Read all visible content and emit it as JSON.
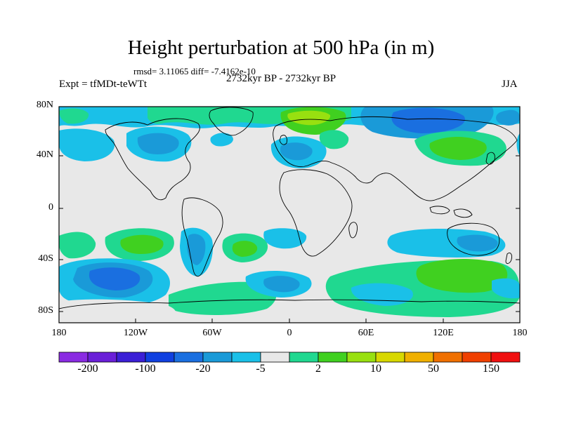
{
  "title": "Height perturbation at 500 hPa (in m)",
  "stats": "rmsd= 3.11065 diff= -7.4162e-10",
  "expt": "Expt = tfMDt-teWTt",
  "period": "2732kyr BP - 2732kyr BP",
  "season": "JJA",
  "lat_ticks": [
    "80N",
    "40N",
    "0",
    "40S",
    "80S"
  ],
  "lon_ticks": [
    "180",
    "120W",
    "60W",
    "0",
    "60E",
    "120E",
    "180"
  ],
  "colorbar": {
    "labels": [
      "-200",
      "-100",
      "-20",
      "-5",
      "2",
      "10",
      "50",
      "150"
    ],
    "colors": [
      "#8a2be2",
      "#6a1fd8",
      "#3b1fd6",
      "#1040e0",
      "#1a6fe0",
      "#1a9ad8",
      "#1ac0e8",
      "#e8e8e8",
      "#20d890",
      "#40d020",
      "#98e010",
      "#d8d800",
      "#f0b000",
      "#f07000",
      "#f04000",
      "#f01010"
    ]
  }
}
